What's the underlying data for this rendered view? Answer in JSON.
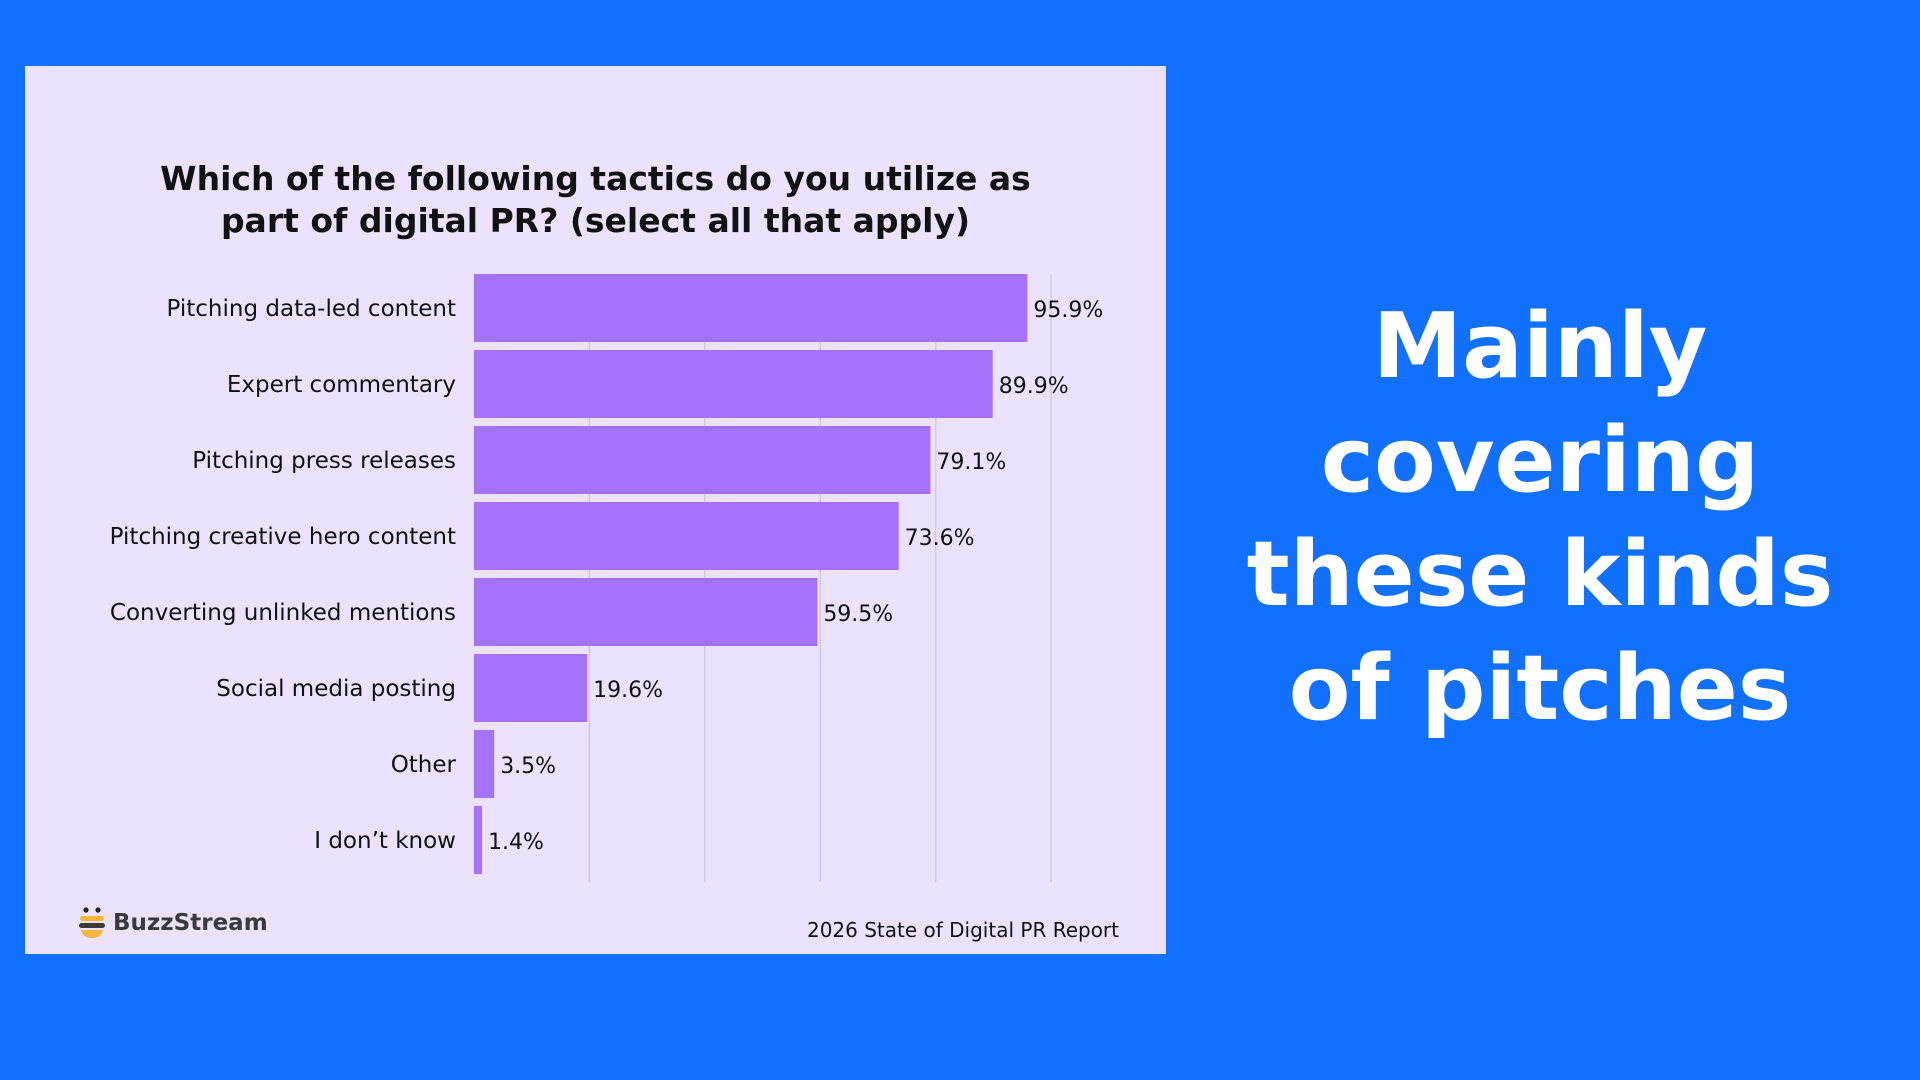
{
  "headline": {
    "lines": [
      "Mainly",
      "covering",
      "these kinds",
      "of pitches"
    ]
  },
  "footer": {
    "brand": "BuzzStream",
    "source": "2026 State of Digital PR Report"
  },
  "colors": {
    "background": "#1170FE",
    "card": "#EDE2FE",
    "bar": "#A473FA",
    "gridline": "#D3C8EE",
    "text": "#111111"
  },
  "chart_data": {
    "type": "bar",
    "orientation": "horizontal",
    "title_lines": [
      "Which of the following tactics do you utilize as",
      "part of digital PR? (select all that apply)"
    ],
    "categories": [
      "Pitching data-led content",
      "Expert commentary",
      "Pitching press releases",
      "Pitching creative hero content",
      "Converting unlinked mentions",
      "Social media posting",
      "Other",
      "I don’t know"
    ],
    "values": [
      95.9,
      89.9,
      79.1,
      73.6,
      59.5,
      19.6,
      3.5,
      1.4
    ],
    "value_labels": [
      "95.9%",
      "89.9%",
      "79.1%",
      "73.6%",
      "59.5%",
      "19.6%",
      "3.5%",
      "1.4%"
    ],
    "xlim": [
      0,
      100
    ],
    "grid_step": 20,
    "grid": true,
    "legend": "none"
  }
}
